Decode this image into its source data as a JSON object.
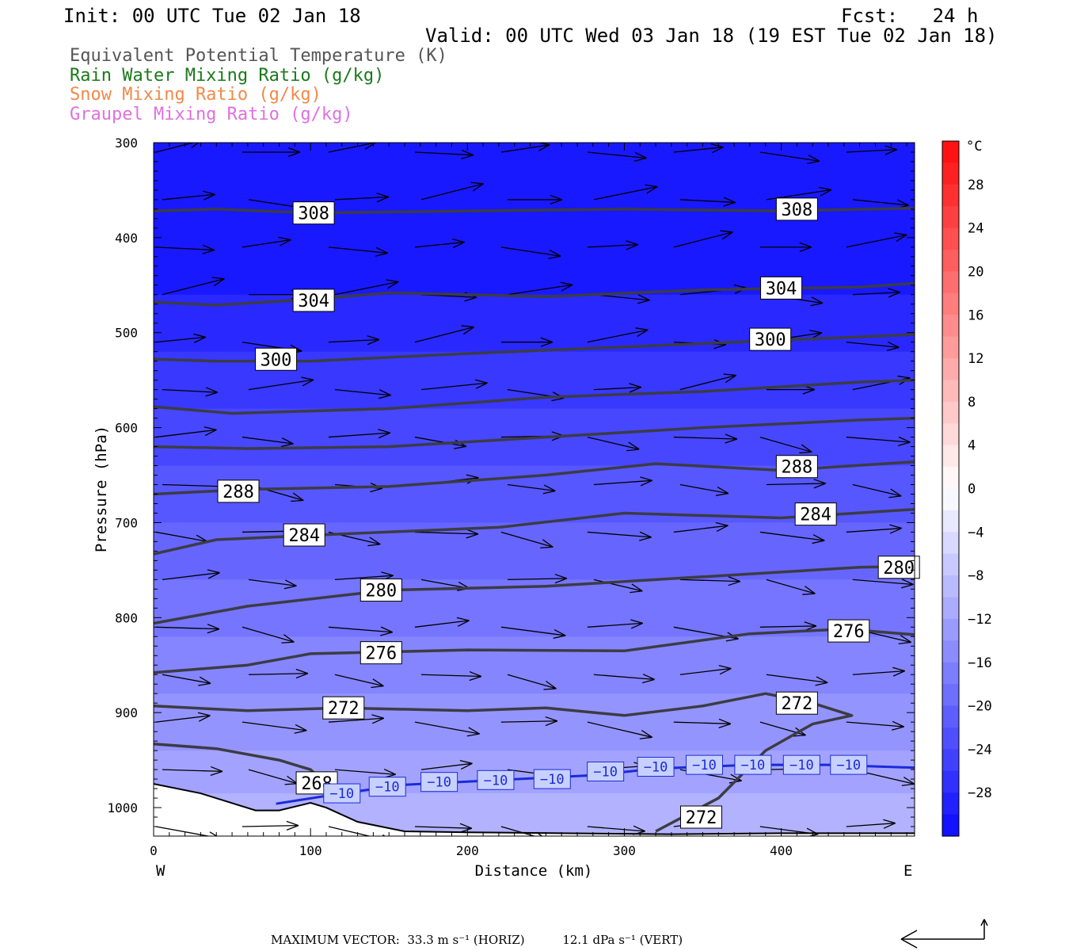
{
  "header": {
    "init": "Init: 00 UTC Tue 02 Jan 18",
    "fcst": "Fcst:   24 h",
    "valid": "Valid: 00 UTC Wed 03 Jan 18 (19 EST Tue 02 Jan 18)"
  },
  "fields": [
    {
      "label": "Equivalent Potential Temperature (K)",
      "color": "#555555"
    },
    {
      "label": "Rain Water Mixing Ratio (g/kg)",
      "color": "#1a7a1a"
    },
    {
      "label": "Snow Mixing Ratio (g/kg)",
      "color": "#f08a4a"
    },
    {
      "label": "Graupel Mixing Ratio (g/kg)",
      "color": "#e070e0"
    }
  ],
  "chart_data": {
    "type": "cross-section",
    "xlabel": "Distance (km)",
    "ylabel": "Pressure (hPa)",
    "xlim": [
      0,
      485
    ],
    "ylim": [
      1030,
      300
    ],
    "x_ticks": [
      0,
      100,
      200,
      300,
      400
    ],
    "y_ticks": [
      300,
      400,
      500,
      600,
      700,
      800,
      900,
      1000
    ],
    "left_end_label": "W",
    "right_end_label": "E",
    "colorbar": {
      "unit": "°C",
      "labels": [
        "28",
        "24",
        "20",
        "16",
        "12",
        "8",
        "4",
        "0",
        "−4",
        "−8",
        "−12",
        "−16",
        "−20",
        "−24",
        "−28"
      ],
      "label_values": [
        28,
        24,
        20,
        16,
        12,
        8,
        4,
        0,
        -4,
        -8,
        -12,
        -16,
        -20,
        -24,
        -28
      ],
      "min": -32,
      "max": 32,
      "step": 2
    },
    "temperature_bands": [
      {
        "pressure": 300,
        "temp": -30
      },
      {
        "pressure": 460,
        "temp": -28
      },
      {
        "pressure": 520,
        "temp": -26
      },
      {
        "pressure": 580,
        "temp": -24
      },
      {
        "pressure": 640,
        "temp": -22
      },
      {
        "pressure": 700,
        "temp": -20
      },
      {
        "pressure": 760,
        "temp": -18
      },
      {
        "pressure": 820,
        "temp": -16
      },
      {
        "pressure": 880,
        "temp": -14
      },
      {
        "pressure": 940,
        "temp": -12
      },
      {
        "pressure": 985,
        "temp": -10
      },
      {
        "pressure": 1030,
        "temp": -8
      }
    ],
    "theta_e_contours": [
      {
        "level": 308,
        "points": [
          [
            0,
            372
          ],
          [
            40,
            370
          ],
          [
            100,
            374
          ],
          [
            200,
            372
          ],
          [
            300,
            370
          ],
          [
            400,
            372
          ],
          [
            485,
            369
          ]
        ],
        "labels": [
          {
            "text": "308",
            "x": 102,
            "p": 374
          },
          {
            "text": "308",
            "x": 410,
            "p": 370
          }
        ]
      },
      {
        "level": 304,
        "points": [
          [
            0,
            468
          ],
          [
            40,
            471
          ],
          [
            100,
            465
          ],
          [
            150,
            458
          ],
          [
            250,
            462
          ],
          [
            350,
            455
          ],
          [
            450,
            452
          ],
          [
            485,
            448
          ]
        ],
        "labels": [
          {
            "text": "304",
            "x": 102,
            "p": 466
          },
          {
            "text": "304",
            "x": 400,
            "p": 453
          }
        ]
      },
      {
        "level": 300,
        "points": [
          [
            0,
            528
          ],
          [
            40,
            530
          ],
          [
            100,
            530
          ],
          [
            200,
            522
          ],
          [
            300,
            515
          ],
          [
            400,
            508
          ],
          [
            485,
            502
          ]
        ],
        "labels": [
          {
            "text": "300",
            "x": 78,
            "p": 528
          },
          {
            "text": "300",
            "x": 393,
            "p": 507
          }
        ]
      },
      {
        "level": 296,
        "points": [
          [
            0,
            578
          ],
          [
            50,
            585
          ],
          [
            150,
            580
          ],
          [
            250,
            568
          ],
          [
            350,
            562
          ],
          [
            450,
            552
          ],
          [
            485,
            550
          ]
        ],
        "labels": []
      },
      {
        "level": 292,
        "points": [
          [
            0,
            620
          ],
          [
            60,
            622
          ],
          [
            150,
            620
          ],
          [
            250,
            610
          ],
          [
            350,
            600
          ],
          [
            450,
            592
          ],
          [
            485,
            590
          ]
        ],
        "labels": []
      },
      {
        "level": 288,
        "points": [
          [
            0,
            670
          ],
          [
            60,
            665
          ],
          [
            150,
            662
          ],
          [
            250,
            650
          ],
          [
            320,
            638
          ],
          [
            400,
            645
          ],
          [
            485,
            636
          ]
        ],
        "labels": [
          {
            "text": "288",
            "x": 54,
            "p": 667
          },
          {
            "text": "288",
            "x": 410,
            "p": 641
          }
        ]
      },
      {
        "level": 284,
        "points": [
          [
            0,
            733
          ],
          [
            40,
            718
          ],
          [
            120,
            712
          ],
          [
            220,
            705
          ],
          [
            300,
            690
          ],
          [
            400,
            695
          ],
          [
            485,
            686
          ]
        ],
        "labels": [
          {
            "text": "284",
            "x": 96,
            "p": 713
          },
          {
            "text": "284",
            "x": 422,
            "p": 691
          }
        ]
      },
      {
        "level": 280,
        "points": [
          [
            0,
            806
          ],
          [
            60,
            788
          ],
          [
            150,
            771
          ],
          [
            250,
            767
          ],
          [
            350,
            757
          ],
          [
            450,
            747
          ],
          [
            485,
            746
          ]
        ],
        "labels": [
          {
            "text": "280",
            "x": 145,
            "p": 771
          },
          {
            "text": "280",
            "x": 475,
            "p": 747
          }
        ]
      },
      {
        "level": 276,
        "points": [
          [
            0,
            858
          ],
          [
            60,
            850
          ],
          [
            100,
            838
          ],
          [
            200,
            834
          ],
          [
            300,
            835
          ],
          [
            380,
            817
          ],
          [
            440,
            812
          ],
          [
            485,
            818
          ]
        ],
        "labels": [
          {
            "text": "276",
            "x": 145,
            "p": 837
          },
          {
            "text": "276",
            "x": 443,
            "p": 814
          }
        ]
      },
      {
        "level": 272,
        "points": [
          [
            0,
            893
          ],
          [
            60,
            898
          ],
          [
            120,
            895
          ],
          [
            200,
            898
          ],
          [
            250,
            895
          ],
          [
            300,
            903
          ],
          [
            350,
            893
          ],
          [
            390,
            880
          ],
          [
            420,
            890
          ],
          [
            445,
            903
          ],
          [
            420,
            912
          ],
          [
            390,
            940
          ],
          [
            360,
            990
          ],
          [
            320,
            1025
          ]
        ],
        "labels": [
          {
            "text": "272",
            "x": 121,
            "p": 895
          },
          {
            "text": "272",
            "x": 410,
            "p": 890
          },
          {
            "text": "272",
            "x": 349,
            "p": 1010
          }
        ]
      },
      {
        "level": 268,
        "points": [
          [
            0,
            933
          ],
          [
            40,
            938
          ],
          [
            80,
            950
          ],
          [
            100,
            960
          ],
          [
            110,
            975
          ],
          [
            115,
            995
          ]
        ],
        "labels": [
          {
            "text": "268",
            "x": 104,
            "p": 974
          }
        ]
      }
    ],
    "temp_contours": [
      {
        "level": -10,
        "color": "#1a2bd8",
        "points": [
          [
            78,
            996
          ],
          [
            120,
            985
          ],
          [
            160,
            976
          ],
          [
            220,
            971
          ],
          [
            280,
            966
          ],
          [
            320,
            959
          ],
          [
            380,
            955
          ],
          [
            430,
            955
          ],
          [
            485,
            958
          ]
        ],
        "labels": [
          {
            "text": "-10",
            "x": 120,
            "p": 985
          },
          {
            "text": "-10",
            "x": 149,
            "p": 978
          },
          {
            "text": "-10",
            "x": 182,
            "p": 973
          },
          {
            "text": "-10",
            "x": 218,
            "p": 971
          },
          {
            "text": "-10",
            "x": 254,
            "p": 970
          },
          {
            "text": "-10",
            "x": 288,
            "p": 962
          },
          {
            "text": "-10",
            "x": 320,
            "p": 957
          },
          {
            "text": "-10",
            "x": 351,
            "p": 955
          },
          {
            "text": "-10",
            "x": 382,
            "p": 955
          },
          {
            "text": "-10",
            "x": 413,
            "p": 955
          },
          {
            "text": "-10",
            "x": 443,
            "p": 955
          }
        ]
      }
    ],
    "terrain": [
      [
        0,
        975
      ],
      [
        30,
        985
      ],
      [
        65,
        1003
      ],
      [
        80,
        1003
      ],
      [
        100,
        995
      ],
      [
        110,
        1000
      ],
      [
        130,
        1015
      ],
      [
        160,
        1025
      ],
      [
        200,
        1026
      ],
      [
        260,
        1027
      ],
      [
        330,
        1028
      ],
      [
        400,
        1027
      ],
      [
        485,
        1027
      ]
    ],
    "vector_rows": [
      310,
      360,
      410,
      460,
      510,
      560,
      610,
      660,
      710,
      760,
      810,
      860,
      910,
      960,
      1020
    ],
    "vector_cols": [
      0,
      55,
      110,
      165,
      220,
      275,
      330,
      385,
      440
    ],
    "vector_note": {
      "horiz_value": "33.3",
      "vert_value": "12.1",
      "text": "MAXIMUM VECTOR:  33.3 m s⁻¹ (HORIZ)          12.1 dPa s⁻¹ (VERT)"
    }
  }
}
